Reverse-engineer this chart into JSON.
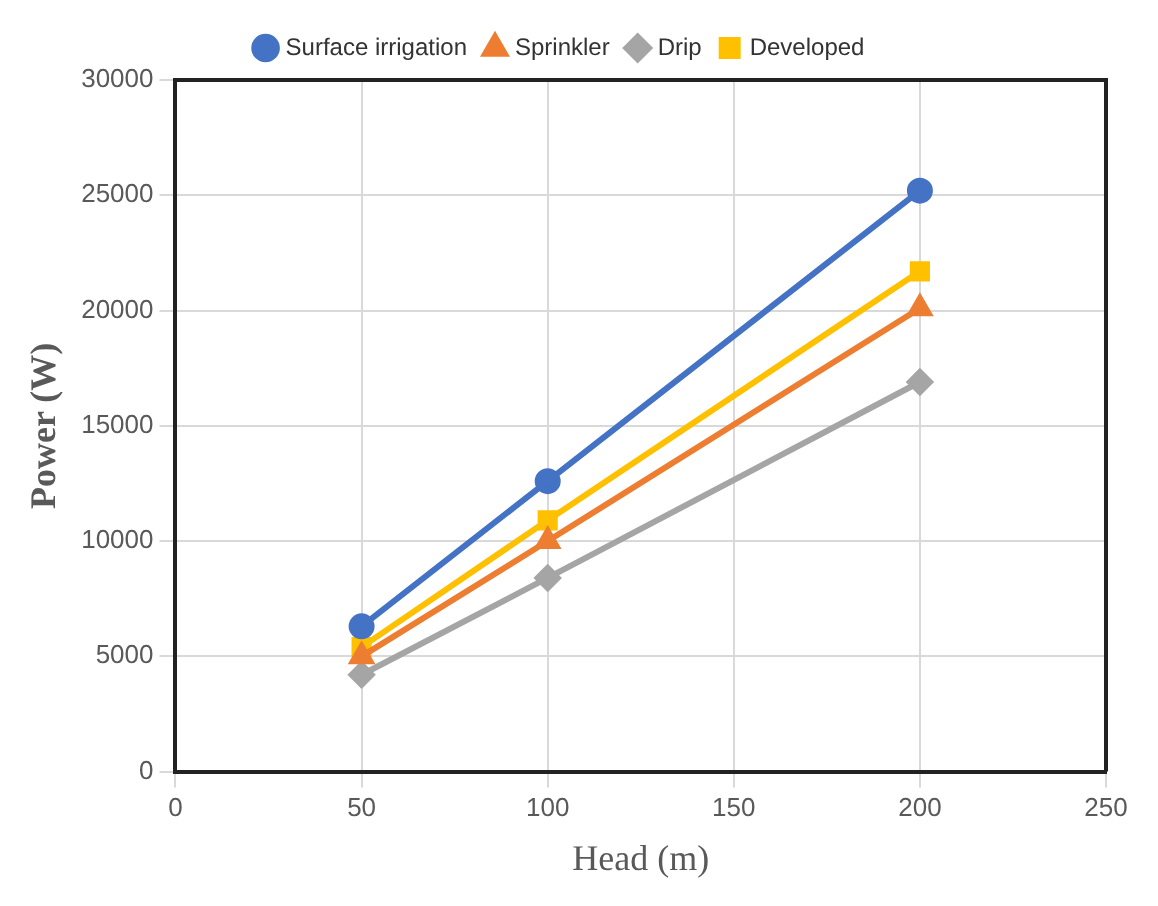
{
  "chart_data": {
    "type": "line",
    "xlabel": "Head (m)",
    "ylabel": "Power (W)",
    "x": [
      50,
      100,
      200
    ],
    "series": [
      {
        "name": "Surface irrigation",
        "color": "#4472c4",
        "marker": "circle",
        "values": [
          6300,
          12600,
          25200
        ]
      },
      {
        "name": "Sprinkler",
        "color": "#ed7d31",
        "marker": "triangle",
        "values": [
          5000,
          10000,
          20100
        ]
      },
      {
        "name": "Drip",
        "color": "#a5a5a5",
        "marker": "diamond",
        "values": [
          4200,
          8400,
          16900
        ]
      },
      {
        "name": "Developed",
        "color": "#ffc000",
        "marker": "square",
        "values": [
          5400,
          10900,
          21700
        ]
      }
    ],
    "xlim": [
      0,
      250
    ],
    "xticks": [
      0,
      50,
      100,
      150,
      200,
      250
    ],
    "ylim": [
      0,
      30000
    ],
    "yticks": [
      0,
      5000,
      10000,
      15000,
      20000,
      25000,
      30000
    ],
    "grid": true,
    "legend": "top",
    "line_style": "solid"
  }
}
